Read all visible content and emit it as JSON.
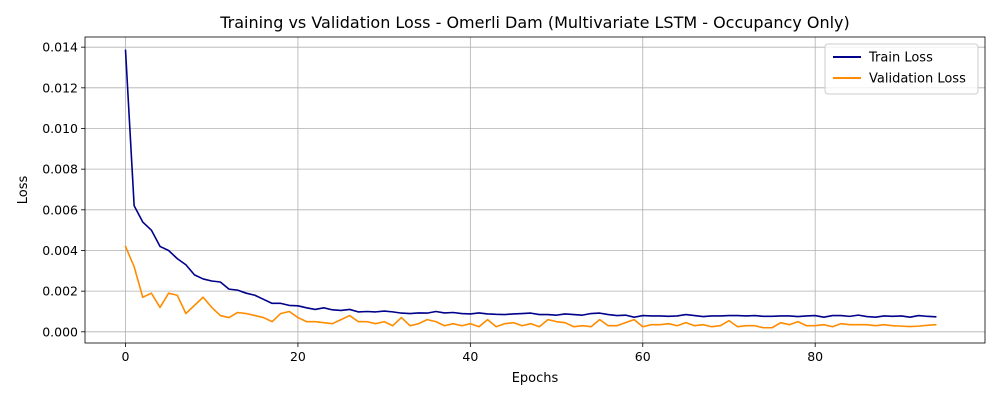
{
  "chart_data": {
    "type": "line",
    "title": "Training vs Validation Loss - Omerli Dam (Multivariate LSTM - Occupancy Only)",
    "xlabel": "Epochs",
    "ylabel": "Loss",
    "xlim": [
      -4.7,
      99.7
    ],
    "ylim": [
      -0.00055,
      0.0145
    ],
    "xticks": [
      0,
      20,
      40,
      60,
      80
    ],
    "yticks": [
      0.0,
      0.002,
      0.004,
      0.006,
      0.008,
      0.01,
      0.012,
      0.014
    ],
    "ytick_labels": [
      "0.000",
      "0.002",
      "0.004",
      "0.006",
      "0.008",
      "0.010",
      "0.012",
      "0.014"
    ],
    "grid": true,
    "legend_position": "top-right",
    "series": [
      {
        "name": "Train Loss",
        "color": "#00008b",
        "values": [
          0.01385,
          0.0062,
          0.0054,
          0.005,
          0.0042,
          0.004,
          0.0036,
          0.0033,
          0.0028,
          0.0026,
          0.0025,
          0.00245,
          0.0021,
          0.00205,
          0.0019,
          0.0018,
          0.0016,
          0.0014,
          0.0014,
          0.0013,
          0.00128,
          0.00118,
          0.0011,
          0.00118,
          0.00108,
          0.00105,
          0.0011,
          0.00098,
          0.001,
          0.00098,
          0.00102,
          0.00098,
          0.00092,
          0.0009,
          0.00093,
          0.00092,
          0.001,
          0.00093,
          0.00095,
          0.0009,
          0.00088,
          0.00093,
          0.00088,
          0.00086,
          0.00085,
          0.00088,
          0.0009,
          0.00092,
          0.00085,
          0.00085,
          0.00082,
          0.00088,
          0.00085,
          0.00082,
          0.0009,
          0.00092,
          0.00085,
          0.0008,
          0.00082,
          0.00072,
          0.0008,
          0.00078,
          0.00078,
          0.00076,
          0.00078,
          0.00085,
          0.0008,
          0.00075,
          0.00078,
          0.00078,
          0.0008,
          0.0008,
          0.00078,
          0.0008,
          0.00076,
          0.00076,
          0.00078,
          0.00078,
          0.00075,
          0.00078,
          0.0008,
          0.00072,
          0.0008,
          0.0008,
          0.00076,
          0.00082,
          0.00075,
          0.00072,
          0.00078,
          0.00076,
          0.00078,
          0.00072,
          0.0008,
          0.00076,
          0.00074
        ]
      },
      {
        "name": "Validation Loss",
        "color": "#ff8c00",
        "values": [
          0.0042,
          0.0032,
          0.0017,
          0.0019,
          0.0012,
          0.0019,
          0.0018,
          0.0009,
          0.0013,
          0.0017,
          0.0012,
          0.0008,
          0.0007,
          0.00095,
          0.0009,
          0.0008,
          0.0007,
          0.0005,
          0.0009,
          0.001,
          0.0007,
          0.0005,
          0.0005,
          0.00045,
          0.0004,
          0.0006,
          0.0008,
          0.0005,
          0.0005,
          0.0004,
          0.0005,
          0.0003,
          0.0007,
          0.0003,
          0.0004,
          0.0006,
          0.0005,
          0.0003,
          0.0004,
          0.0003,
          0.0004,
          0.00025,
          0.0006,
          0.00025,
          0.0004,
          0.00045,
          0.0003,
          0.0004,
          0.00025,
          0.0006,
          0.0005,
          0.00045,
          0.00025,
          0.0003,
          0.00025,
          0.0006,
          0.0003,
          0.0003,
          0.00045,
          0.0006,
          0.00025,
          0.00035,
          0.00035,
          0.0004,
          0.0003,
          0.00045,
          0.0003,
          0.00035,
          0.00025,
          0.0003,
          0.00055,
          0.00025,
          0.0003,
          0.0003,
          0.0002,
          0.0002,
          0.00045,
          0.00035,
          0.0005,
          0.0003,
          0.0003,
          0.00035,
          0.00025,
          0.0004,
          0.00035,
          0.00035,
          0.00035,
          0.0003,
          0.00035,
          0.0003,
          0.00028,
          0.00026,
          0.00028,
          0.00032,
          0.00035
        ]
      }
    ]
  }
}
